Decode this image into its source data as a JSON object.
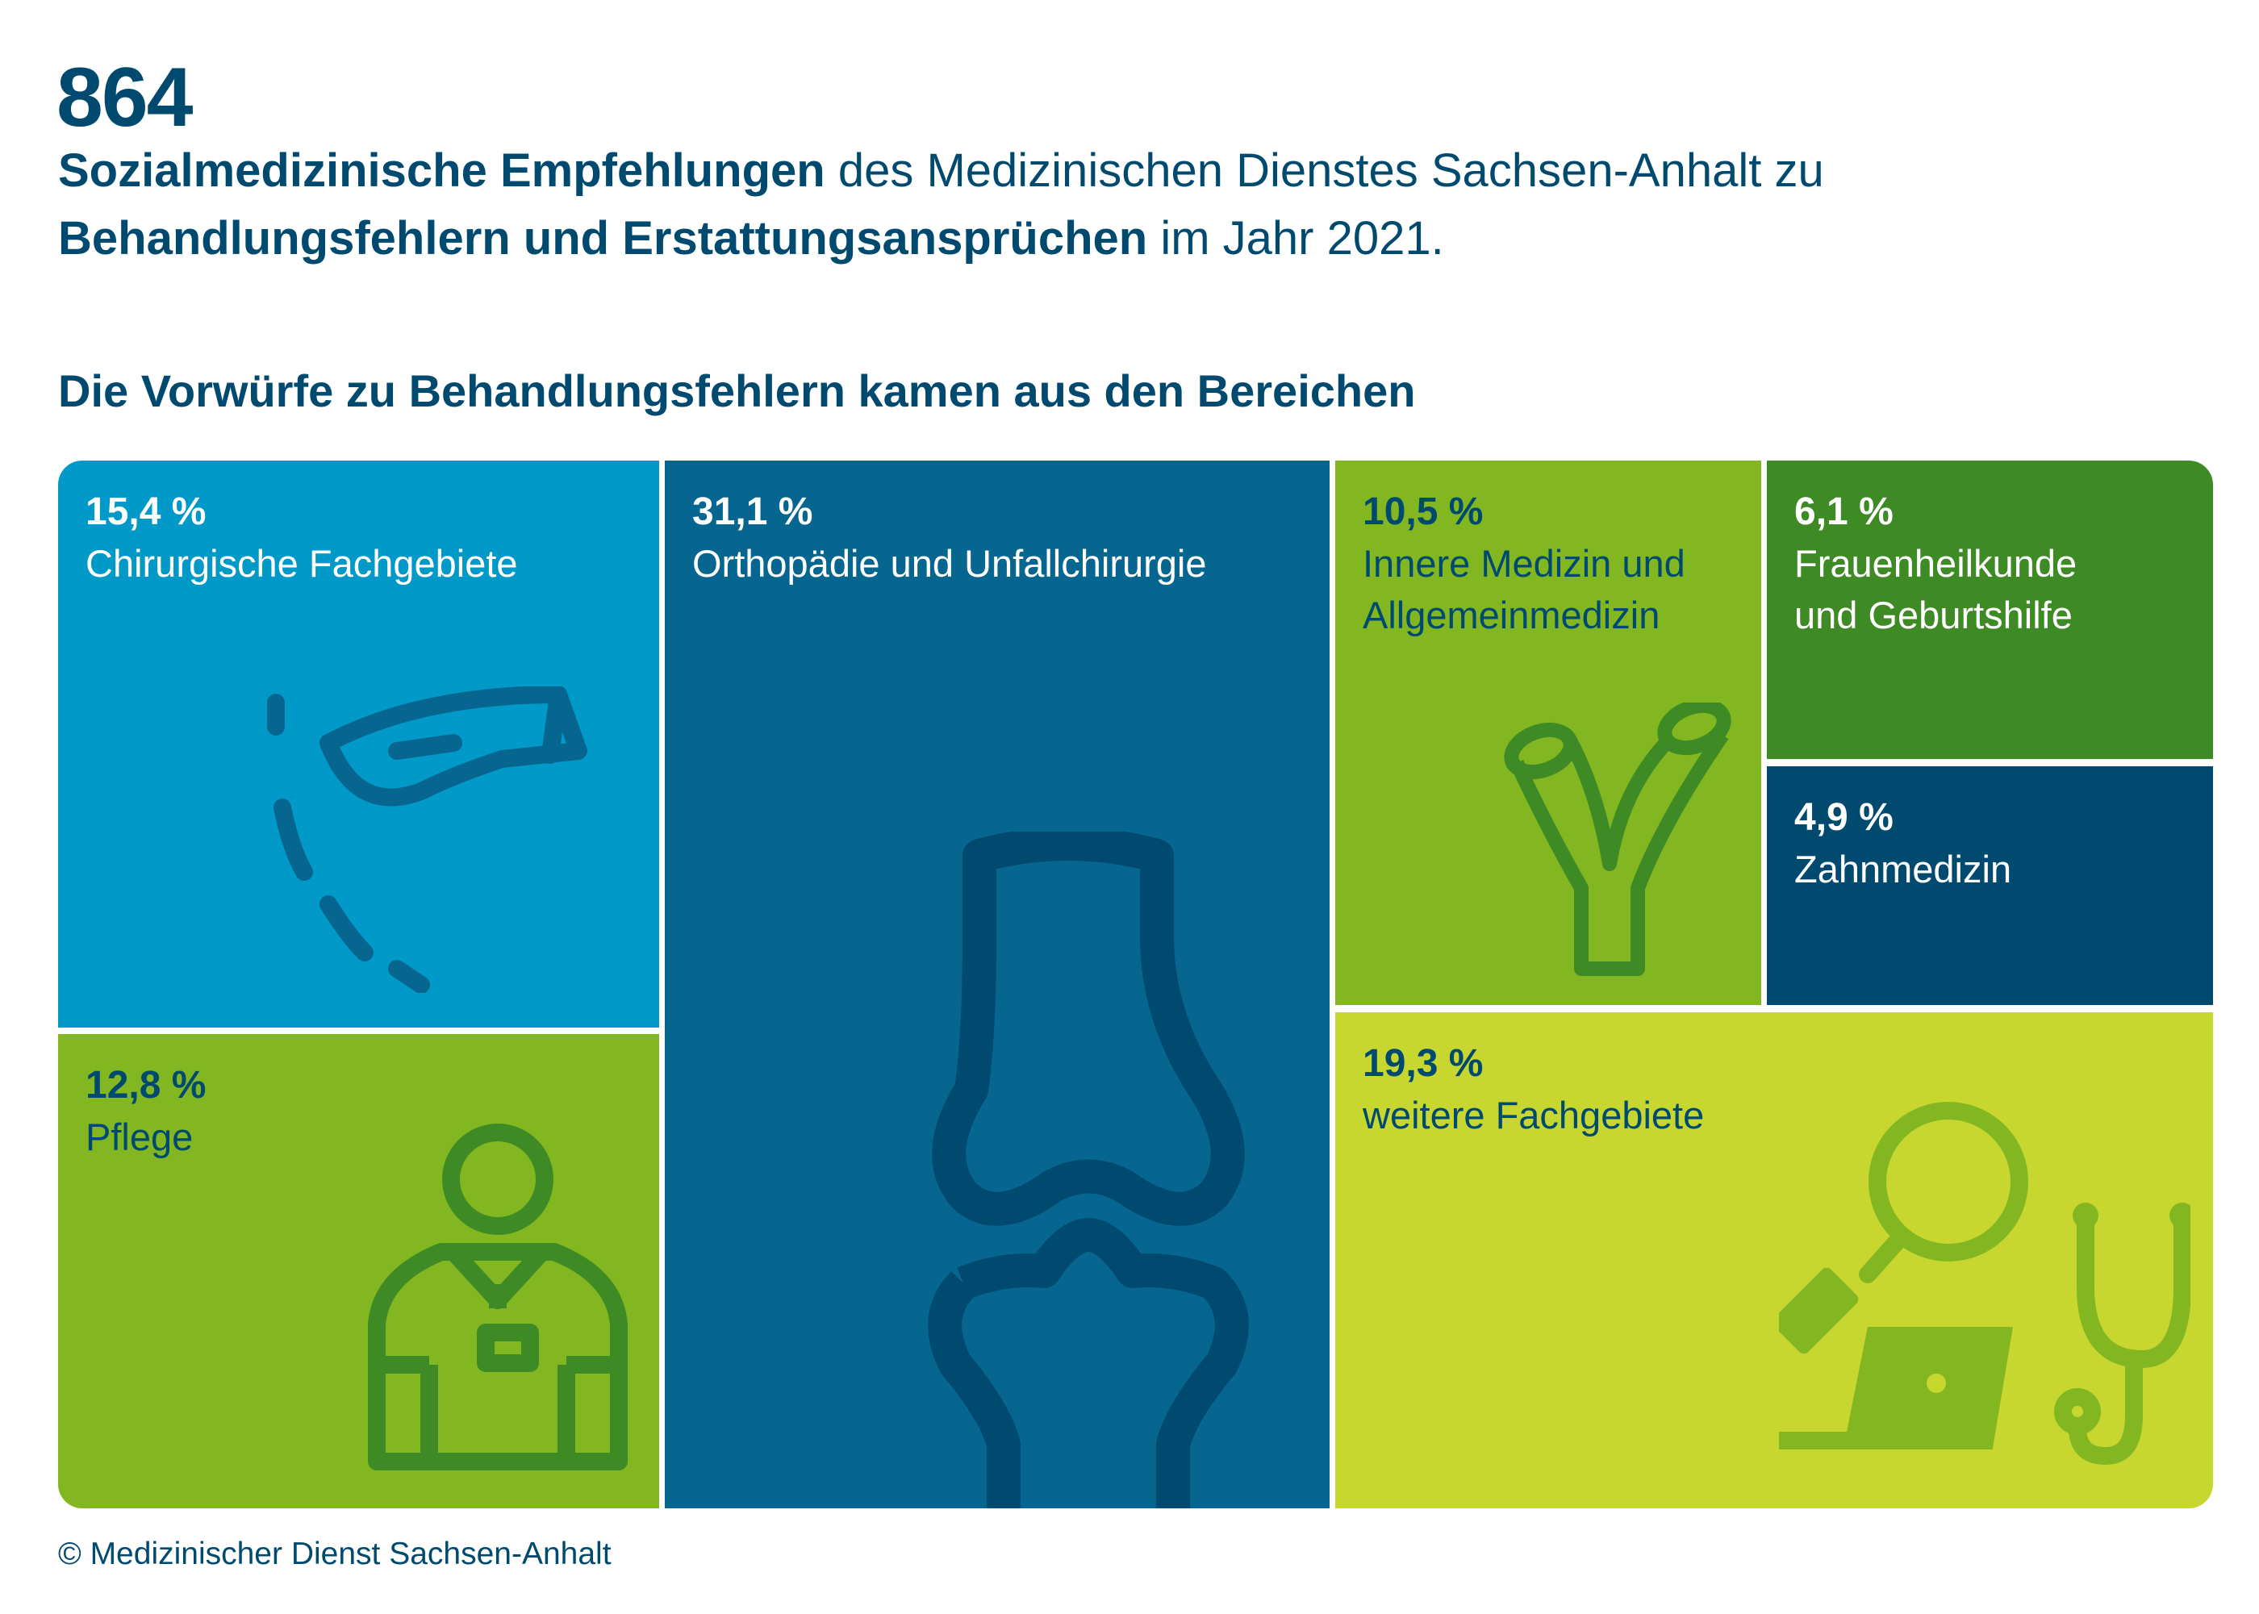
{
  "header": {
    "number": "864",
    "line1_bold": "Sozialmedizinische Empfehlungen",
    "line1_rest": " des Medizinischen Dienstes Sachsen-Anhalt zu",
    "line2_bold": "Behandlungsfehlern und Erstattungsansprüchen",
    "line2_rest": " im Jahr 2021."
  },
  "section_title": "Die Vorwürfe zu Behandlungsfehlern kamen aus den Bereichen",
  "chart_data": {
    "type": "treemap",
    "title": "Die Vorwürfe zu Behandlungsfehlern kamen aus den Bereichen",
    "unit": "%",
    "items": [
      {
        "label": "Chirurgische Fachgebiete",
        "value": 15.4,
        "value_label": "15,4 %",
        "color": "#0099c8",
        "icon": "scalpel-icon"
      },
      {
        "label": "Pflege",
        "value": 12.8,
        "value_label": "12,8 %",
        "color": "#82b722",
        "icon": "nurse-icon"
      },
      {
        "label": "Orthopädie und Unfallchirurgie",
        "value": 31.1,
        "value_label": "31,1 %",
        "color": "#06668f",
        "icon": "knee-bone-icon"
      },
      {
        "label": "Innere Medizin und Allgemeinmedizin",
        "value": 10.5,
        "value_label": "10,5 %",
        "color": "#82b722",
        "icon": "bronchi-icon"
      },
      {
        "label": "Frauenheilkunde und Geburtshilfe",
        "value": 6.1,
        "value_label": "6,1 %",
        "color": "#3e8a25",
        "icon": ""
      },
      {
        "label": "Zahnmedizin",
        "value": 4.9,
        "value_label": "4,9 %",
        "color": "#004a70",
        "icon": ""
      },
      {
        "label": "weitere Fachgebiete",
        "value": 19.3,
        "value_label": "19,3 %",
        "color": "#c8d630",
        "icon": "magnifier-laptop-stethoscope-icon"
      }
    ]
  },
  "footer": "© Medizinischer Dienst Sachsen-Anhalt"
}
